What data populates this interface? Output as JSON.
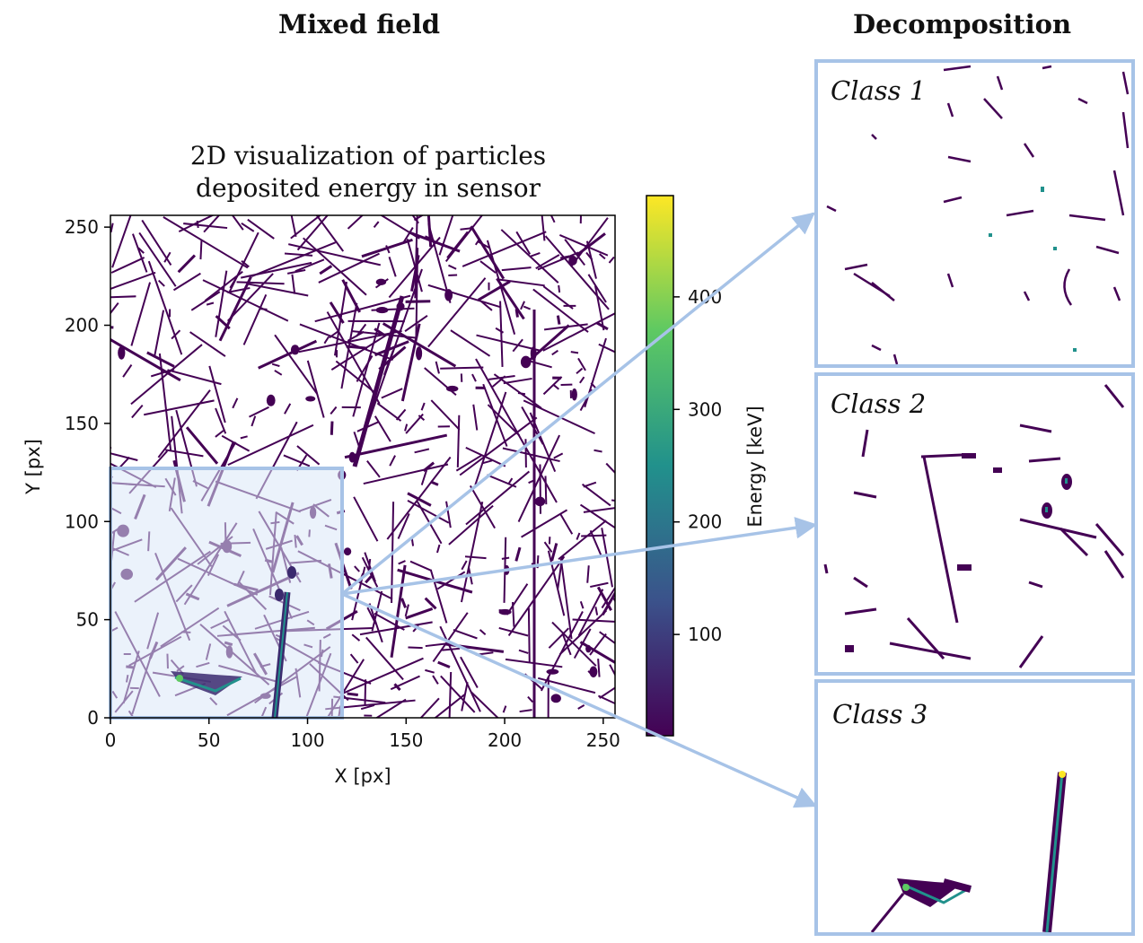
{
  "headings": {
    "left": "Mixed field",
    "right": "Decomposition"
  },
  "main_plot": {
    "title_line1": "2D visualization of particles",
    "title_line2": "deposited energy in sensor",
    "x_label": "X [px]",
    "y_label": "Y [px]",
    "x_ticks": [
      "0",
      "50",
      "100",
      "150",
      "200",
      "250"
    ],
    "y_ticks": [
      "0",
      "50",
      "100",
      "150",
      "200",
      "250"
    ]
  },
  "colorbar": {
    "label": "Energy [keV]",
    "ticks": [
      "100",
      "200",
      "300",
      "400"
    ]
  },
  "panels": [
    {
      "label": "Class 1"
    },
    {
      "label": "Class 2"
    },
    {
      "label": "Class 3"
    }
  ],
  "colors": {
    "track": "#440154",
    "highlight": "#a7c3e7",
    "highlight_fill": "#dbe8f8",
    "viridis": [
      "#440154",
      "#3b528b",
      "#21918c",
      "#5ec962",
      "#fde725"
    ]
  }
}
